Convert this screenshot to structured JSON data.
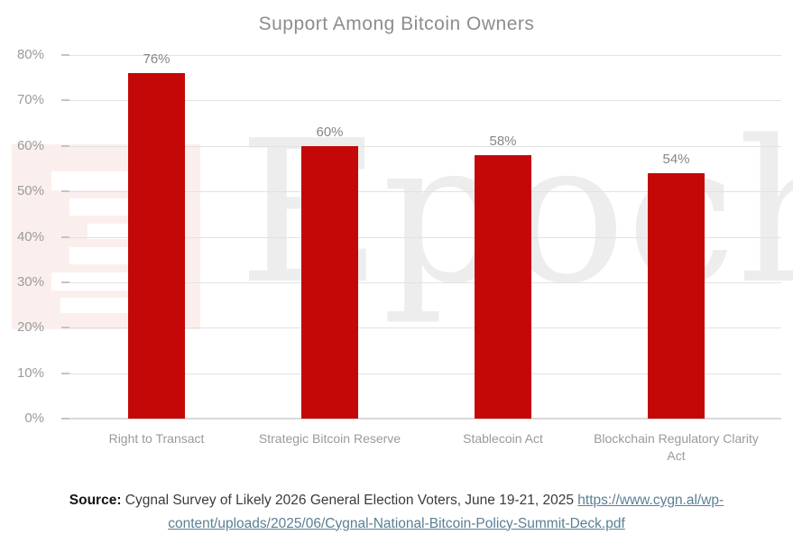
{
  "title": "Support Among Bitcoin Owners",
  "watermark": {
    "text": "Epoch",
    "logo": "epoch-times-logo-watermark"
  },
  "colors": {
    "bar": "#c40808",
    "link": "#5a8093",
    "gridline": "#e2e2e2",
    "axis_text": "#9b9b9b"
  },
  "chart_data": {
    "type": "bar",
    "title": "Support Among Bitcoin Owners",
    "categories": [
      "Right to Transact",
      "Strategic Bitcoin Reserve",
      "Stablecoin Act",
      "Blockchain Regulatory Clarity Act"
    ],
    "values": [
      76,
      60,
      58,
      54
    ],
    "value_labels": [
      "76%",
      "60%",
      "58%",
      "54%"
    ],
    "xlabel": "",
    "ylabel": "",
    "ylim": [
      0,
      80
    ],
    "yticks": [
      "0%",
      "10%",
      "20%",
      "30%",
      "40%",
      "50%",
      "60%",
      "70%",
      "80%"
    ],
    "grid": true,
    "legend": "none",
    "bar_color": "#c40808"
  },
  "footer": {
    "source_label": "Source:",
    "source_text": " Cygnal Survey of Likely 2026 General Election Voters, June 19-21, 2025 ",
    "link_line1": "https://www.cygn.al/wp-",
    "link_line2": "content/uploads/2025/06/Cygnal-National-Bitcoin-Policy-Summit-Deck.pdf"
  }
}
